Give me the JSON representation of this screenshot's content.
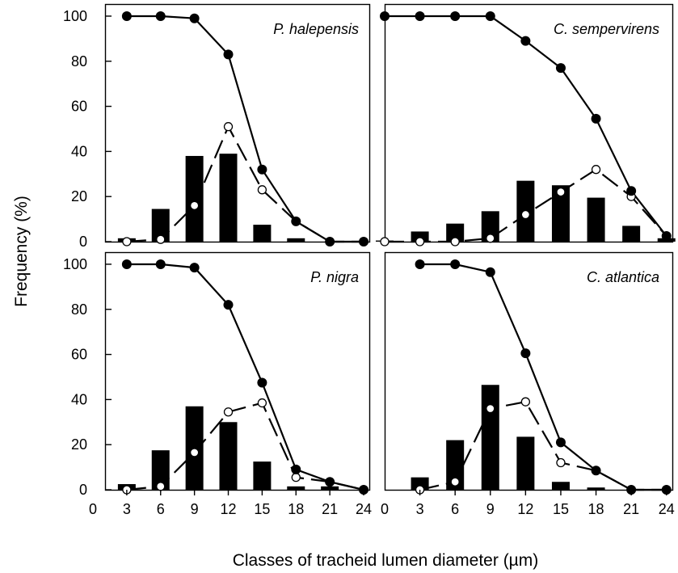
{
  "figure": {
    "xlabel": "Classes of tracheid lumen diameter (µm)",
    "ylabel": "Frequency (%)",
    "x_ticks": [
      "0",
      "3",
      "6",
      "9",
      "12",
      "15",
      "18",
      "21",
      "24"
    ],
    "y_ticks": [
      "0",
      "20",
      "40",
      "60",
      "80",
      "100"
    ]
  },
  "chart_data": [
    {
      "type": "bar",
      "title": "P. halepensis",
      "x": [
        3,
        6,
        9,
        12,
        15,
        18,
        21,
        24
      ],
      "xlim": [
        0,
        24.5
      ],
      "ylim": [
        0,
        105
      ],
      "bars": [
        1.5,
        14.5,
        38,
        39,
        7.5,
        1.5,
        0,
        0
      ],
      "cumulative": [
        100,
        100,
        99,
        83,
        32,
        9,
        0,
        0
      ],
      "relative": [
        0,
        1,
        16,
        51,
        23,
        9,
        0,
        0
      ]
    },
    {
      "type": "bar",
      "title": "C. sempervirens",
      "x": [
        0,
        3,
        6,
        9,
        12,
        15,
        18,
        21,
        24
      ],
      "xlim": [
        0,
        24.5
      ],
      "ylim": [
        0,
        105
      ],
      "bars": [
        0.5,
        4.5,
        8,
        13.5,
        27,
        25,
        19.5,
        7,
        1.5
      ],
      "cumulative": [
        100,
        100,
        100,
        100,
        89,
        77,
        54.5,
        22.5,
        2.5
      ],
      "relative": [
        0,
        0,
        0,
        1.5,
        12,
        22,
        32,
        20,
        2.5
      ]
    },
    {
      "type": "bar",
      "title": "P. nigra",
      "x": [
        3,
        6,
        9,
        12,
        15,
        18,
        21,
        24
      ],
      "xlim": [
        0,
        24.5
      ],
      "ylim": [
        0,
        105
      ],
      "bars": [
        2.5,
        17.5,
        37,
        30,
        12.5,
        1.5,
        1.5,
        0
      ],
      "cumulative": [
        100,
        100,
        98.5,
        82,
        47.5,
        9,
        3.5,
        0
      ],
      "relative": [
        0,
        1.5,
        16.5,
        34.5,
        38.5,
        5.5,
        3.5,
        0
      ]
    },
    {
      "type": "bar",
      "title": "C. atlantica",
      "x": [
        3,
        6,
        9,
        12,
        15,
        18,
        21,
        24
      ],
      "xlim": [
        0,
        24.5
      ],
      "ylim": [
        0,
        105
      ],
      "bars": [
        5.5,
        22,
        46.5,
        23.5,
        3.5,
        1,
        0,
        0
      ],
      "cumulative": [
        100,
        100,
        96.5,
        60.5,
        21,
        8.5,
        0,
        0
      ],
      "relative": [
        0,
        3.5,
        36,
        39,
        12,
        8.5,
        0,
        0
      ]
    }
  ]
}
